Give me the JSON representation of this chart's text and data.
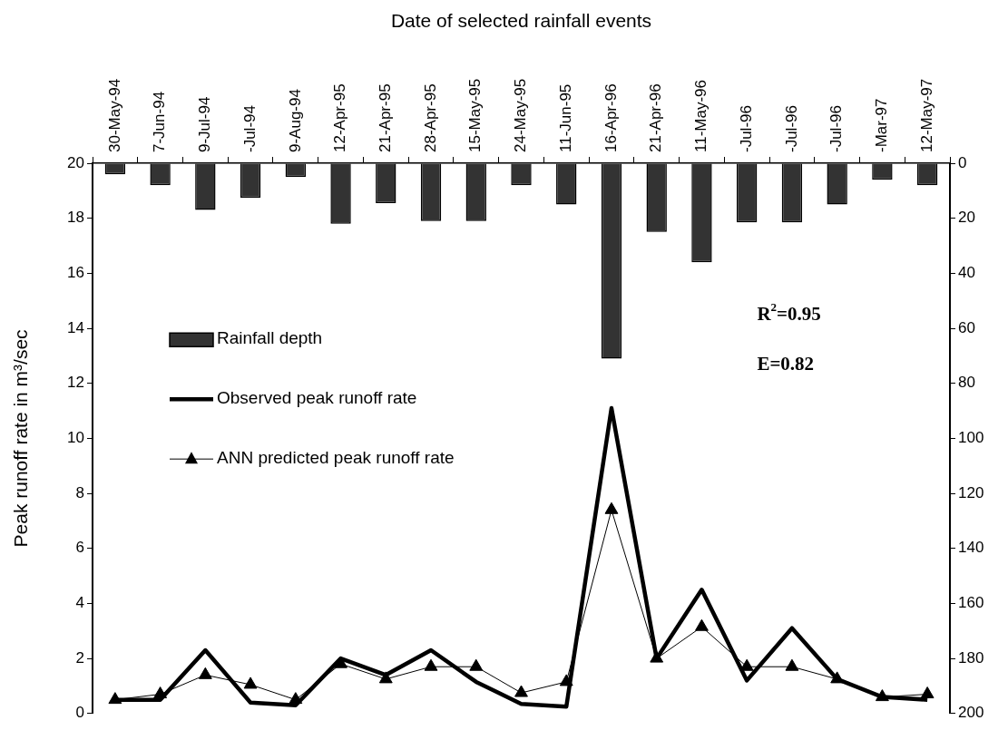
{
  "chart_data": {
    "type": "line",
    "xlabel": "Date of selected rainfall events",
    "ylabel": "Peak runoff rate in m³/sec",
    "categories": [
      "30-May-94",
      "7-Jun-94",
      "9-Jul-94",
      "-Jul-94",
      "9-Aug-94",
      "12-Apr-95",
      "21-Apr-95",
      "28-Apr-95",
      "15-May-95",
      "24-May-95",
      "11-Jun-95",
      "16-Apr-96",
      "21-Apr-96",
      "11-May-96",
      "-Jul-96",
      "-Jul-96",
      "-Jul-96",
      "-Mar-97",
      "12-May-97"
    ],
    "series": [
      {
        "name": "Rainfall depth",
        "type": "bar",
        "axis": "y2",
        "color": "#333333",
        "values": [
          4,
          8,
          17,
          12.5,
          5,
          22,
          14.5,
          21,
          21,
          8,
          15,
          71,
          25,
          36,
          21.5,
          21.5,
          15,
          6,
          8
        ]
      },
      {
        "name": "Observed peak runoff rate",
        "color": "#000000",
        "marker": "none",
        "values": [
          0.5,
          0.5,
          2.3,
          0.4,
          0.3,
          2,
          1.4,
          2.3,
          1.15,
          0.35,
          0.25,
          11.1,
          2,
          4.5,
          1.2,
          3.1,
          1.25,
          0.6,
          0.5
        ]
      },
      {
        "name": "ANN predicted peak runoff rate",
        "color": "#000000",
        "marker": "triangle",
        "values": [
          0.5,
          0.7,
          1.4,
          1.05,
          0.5,
          1.8,
          1.25,
          1.7,
          1.7,
          0.75,
          1.15,
          7.4,
          2,
          3.15,
          1.7,
          1.7,
          1.25,
          0.6,
          0.7
        ]
      }
    ],
    "ylim": [
      0,
      20
    ],
    "yticks": [
      0,
      2,
      4,
      6,
      8,
      10,
      12,
      14,
      16,
      18,
      20
    ],
    "y2lim": [
      200,
      0
    ],
    "y2ticks": [
      0,
      20,
      40,
      60,
      80,
      100,
      120,
      140,
      160,
      180,
      200
    ],
    "grid": false,
    "legend": "left",
    "annotations": [
      "R$^{2}$=0.95",
      "E=0.82"
    ]
  }
}
